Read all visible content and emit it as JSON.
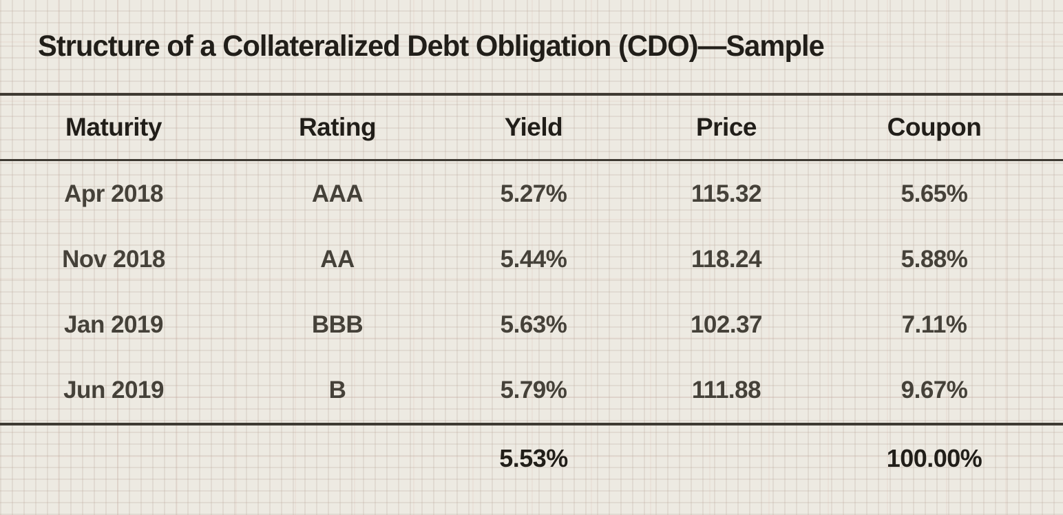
{
  "title": "Structure of a Collateralized Debt Obligation (CDO)—Sample",
  "table": {
    "columns": [
      "Maturity",
      "Rating",
      "Yield",
      "Price",
      "Coupon"
    ],
    "rows": [
      {
        "maturity": "Apr 2018",
        "rating": "AAA",
        "yield": "5.27%",
        "price": "115.32",
        "coupon": "5.65%"
      },
      {
        "maturity": "Nov 2018",
        "rating": "AA",
        "yield": "5.44%",
        "price": "118.24",
        "coupon": "5.88%"
      },
      {
        "maturity": "Jan 2019",
        "rating": "BBB",
        "yield": "5.63%",
        "price": "102.37",
        "coupon": "7.11%"
      },
      {
        "maturity": "Jun 2019",
        "rating": "B",
        "yield": "5.79%",
        "price": "111.88",
        "coupon": "9.67%"
      }
    ],
    "summary": {
      "maturity": "",
      "rating": "",
      "yield": "5.53%",
      "price": "",
      "coupon": "100.00%"
    }
  },
  "chart_data": {
    "type": "table",
    "title": "Structure of a Collateralized Debt Obligation (CDO)—Sample",
    "columns": [
      "Maturity",
      "Rating",
      "Yield",
      "Price",
      "Coupon"
    ],
    "rows": [
      [
        "Apr 2018",
        "AAA",
        "5.27%",
        "115.32",
        "5.65%"
      ],
      [
        "Nov 2018",
        "AA",
        "5.44%",
        "118.24",
        "5.88%"
      ],
      [
        "Jan 2019",
        "BBB",
        "5.63%",
        "102.37",
        "7.11%"
      ],
      [
        "Jun 2019",
        "B",
        "5.79%",
        "111.88",
        "9.67%"
      ]
    ],
    "summary_row": [
      "",
      "",
      "5.53%",
      "",
      "100.00%"
    ]
  },
  "colors": {
    "background": "#edeae2",
    "grid_line": "#ddd5c9",
    "rule": "#3e3a32",
    "heading_text": "#211e19",
    "data_text": "#454139"
  }
}
